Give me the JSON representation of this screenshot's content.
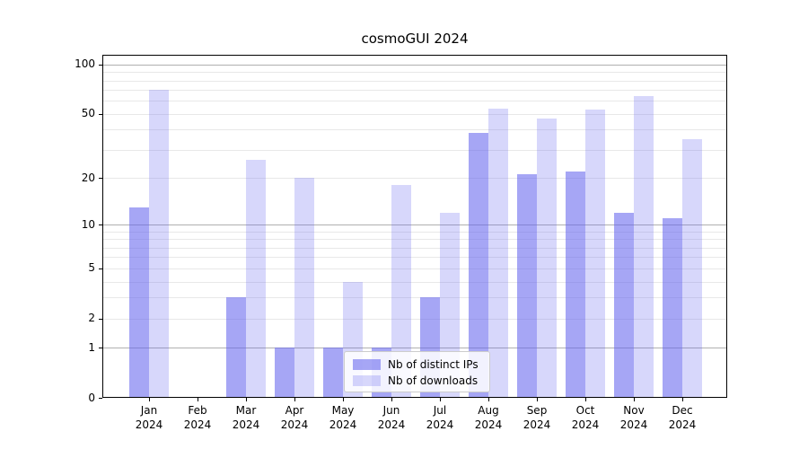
{
  "title": "cosmoGUI 2024",
  "colors": {
    "ips_bar": "rgba(102,102,238,0.58)",
    "downloads_bar": "rgba(102,102,238,0.26)",
    "major_grid": "#b0b0b0",
    "minor_grid": "#e8e8e8",
    "axis": "#000000",
    "legend_border": "#cccccc"
  },
  "chart_data": {
    "type": "bar",
    "title": "cosmoGUI 2024",
    "categories": [
      "Jan",
      "Feb",
      "Mar",
      "Apr",
      "May",
      "Jun",
      "Jul",
      "Aug",
      "Sep",
      "Oct",
      "Nov",
      "Dec"
    ],
    "xtick_second_line": "2024",
    "series": [
      {
        "name": "Nb of distinct IPs",
        "values": [
          13,
          0,
          3,
          1,
          1,
          1,
          3,
          38,
          21,
          22,
          12,
          11
        ]
      },
      {
        "name": "Nb of downloads",
        "values": [
          70,
          0,
          26,
          20,
          4,
          18,
          12,
          54,
          47,
          53,
          64,
          35
        ]
      }
    ],
    "yscale": "log1p",
    "ylim": [
      0,
      114.5
    ],
    "ytick_labels": [
      "0",
      "1",
      "2",
      "5",
      "10",
      "20",
      "50",
      "100"
    ],
    "ytick_values": [
      0,
      1,
      2,
      5,
      10,
      20,
      50,
      100
    ],
    "ymajor_grid_values": [
      1,
      10,
      100
    ],
    "yminor_grid_values": [
      2,
      3,
      4,
      5,
      6,
      7,
      8,
      9,
      20,
      30,
      40,
      50,
      60,
      70,
      80,
      90
    ],
    "grid": true,
    "legend_position": "lower center",
    "xlabel": "",
    "ylabel": ""
  }
}
